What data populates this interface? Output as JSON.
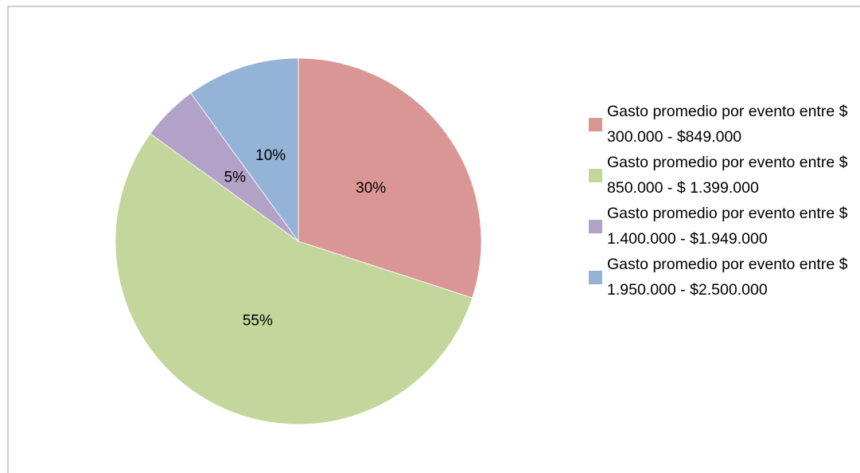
{
  "chart_data": {
    "type": "pie",
    "categories": [
      "Gasto promedio por evento entre $ 300.000 - $849.000",
      "Gasto promedio por evento entre $ 850.000 - $ 1.399.000",
      "Gasto promedio por evento entre $ 1.400.000 - $1.949.000",
      "Gasto promedio por evento entre $ 1.950.000 - $2.500.000"
    ],
    "values": [
      30,
      55,
      5,
      10
    ],
    "value_labels": [
      "30%",
      "55%",
      "5%",
      "10%"
    ],
    "colors": [
      "#d99694",
      "#c3d69b",
      "#b3a2c7",
      "#95b3d7"
    ],
    "legend": "right"
  }
}
